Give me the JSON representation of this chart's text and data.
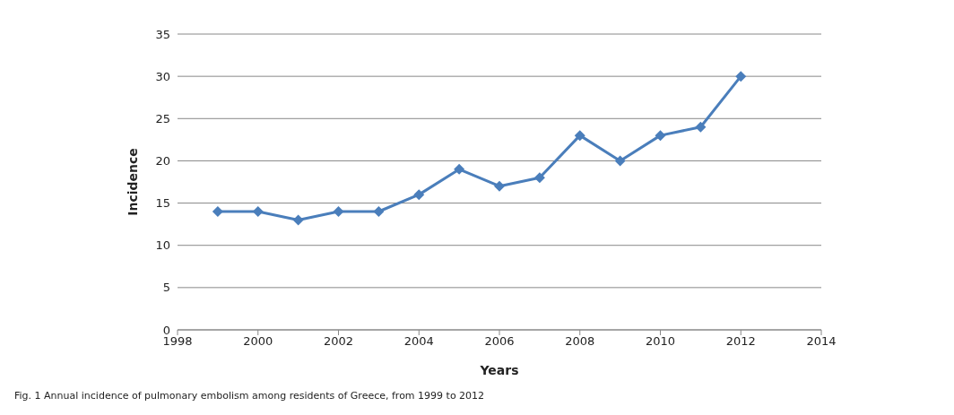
{
  "chart_data": {
    "type": "line",
    "xlabel": "Years",
    "ylabel": "Incidence",
    "annotations": [
      "Fig. 1 Annual incidence of pulmonary embolism among residents of Greece, from 1999 to 2012"
    ],
    "x": [
      1999,
      2000,
      2001,
      2002,
      2003,
      2004,
      2005,
      2006,
      2007,
      2008,
      2009,
      2010,
      2011,
      2012
    ],
    "series": [
      {
        "color": "#4a7ebb",
        "values": [
          14,
          14,
          13,
          14,
          14,
          16,
          19,
          17,
          18,
          23,
          20,
          23,
          24,
          30
        ]
      }
    ],
    "xlim": [
      1998,
      2014
    ],
    "xticks": [
      1998,
      2000,
      2002,
      2004,
      2006,
      2008,
      2010,
      2012,
      2014
    ],
    "ylim": [
      0,
      35
    ],
    "yticks": [
      0,
      5,
      10,
      15,
      20,
      25,
      30,
      35
    ],
    "grid": "y",
    "marker": "diamond",
    "line_style": "solid",
    "legend": false
  }
}
